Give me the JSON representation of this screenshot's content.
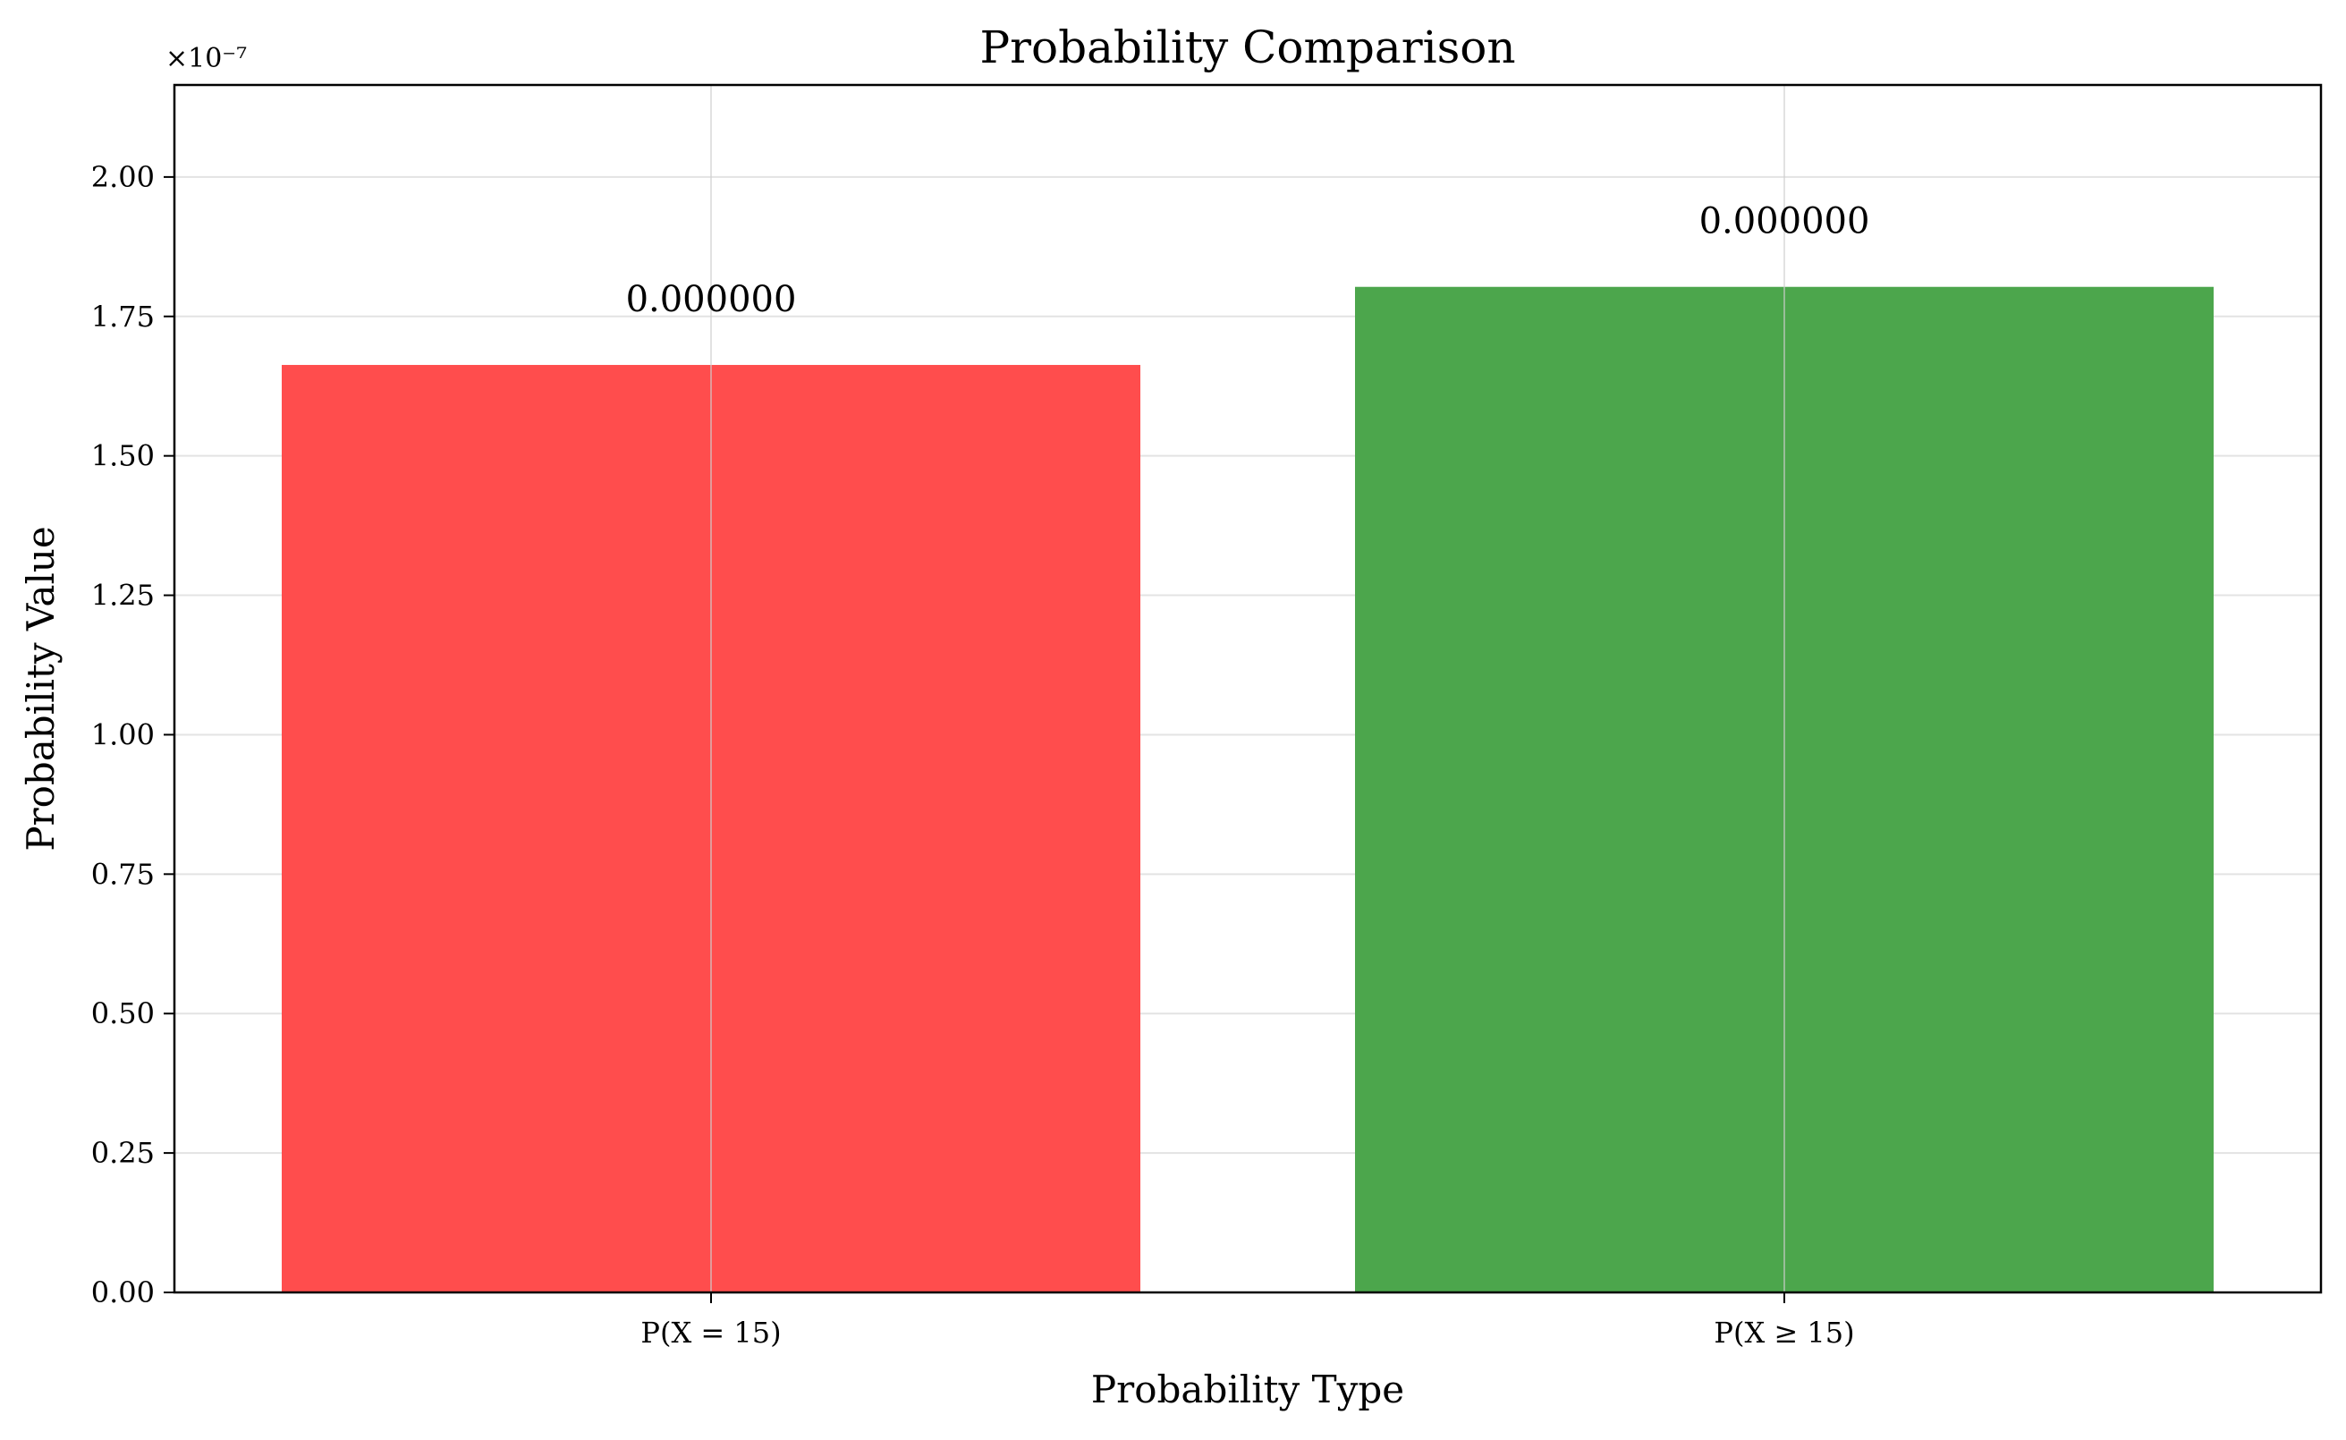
{
  "chart_data": {
    "type": "bar",
    "title": "Probability Comparison",
    "xlabel": "Probability Type",
    "ylabel": "Probability Value",
    "categories": [
      "P(X = 15)",
      "P(X ≥ 15)"
    ],
    "values": [
      1.663e-07,
      1.803e-07
    ],
    "bar_labels": [
      "0.000000",
      "0.000000"
    ],
    "colors": [
      "#ff4d4d",
      "#4ca64c"
    ],
    "ylim": [
      0,
      2.165e-07
    ],
    "yticks": [
      0,
      2.5e-08,
      5e-08,
      7.5e-08,
      1e-07,
      1.25e-07,
      1.5e-07,
      1.75e-07,
      2e-07
    ],
    "ytick_labels": [
      "0.00",
      "0.25",
      "0.50",
      "0.75",
      "1.00",
      "1.25",
      "1.50",
      "1.75",
      "2.00"
    ],
    "y_offset_label": "×10⁻⁷",
    "grid": true
  }
}
